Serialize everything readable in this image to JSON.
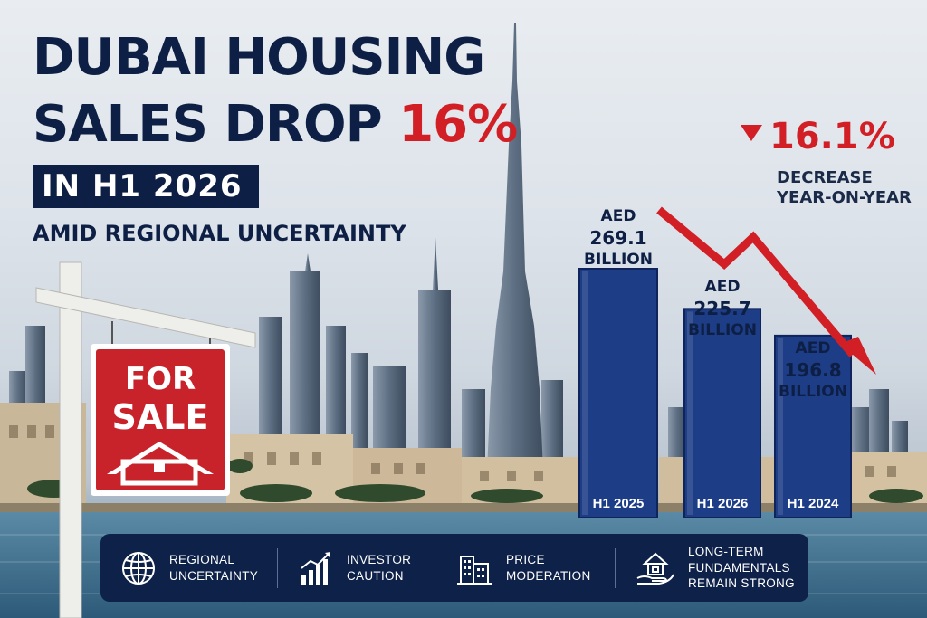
{
  "headline": {
    "line1": "DUBAI HOUSING",
    "line2_prefix": "SALES DROP ",
    "line2_highlight": "16%",
    "line3": "IN H1 2026",
    "subtitle": "AMID REGIONAL UNCERTAINTY"
  },
  "sign": {
    "line1": "FOR",
    "line2": "SALE"
  },
  "change": {
    "value": "16.1%",
    "label1": "DECREASE",
    "label2": "YEAR-ON-YEAR"
  },
  "chart_data": {
    "type": "bar",
    "title": "",
    "categories": [
      "H1 2025",
      "H1 2026",
      "H1 2024"
    ],
    "values": [
      269.1,
      225.7,
      196.8
    ],
    "value_labels": [
      {
        "prefix": "AED",
        "value": "269.1",
        "suffix": "BILLION"
      },
      {
        "prefix": "AED",
        "value": "225.7",
        "suffix": "BILLION"
      },
      {
        "prefix": "AED",
        "value": "196.8",
        "suffix": "BILLION"
      }
    ],
    "unit": "AED billion",
    "trend": "downward",
    "colors": {
      "bar": "#1e3d87",
      "bar_dark": "#0f245a",
      "trend_arrow": "#d21f26"
    }
  },
  "panel": {
    "items": [
      {
        "icon": "globe-icon",
        "line1": "REGIONAL",
        "line2": "UNCERTAINTY"
      },
      {
        "icon": "trend-up-icon",
        "line1": "INVESTOR",
        "line2": "CAUTION"
      },
      {
        "icon": "buildings-icon",
        "line1": "PRICE",
        "line2": "MODERATION"
      },
      {
        "icon": "house-hand-icon",
        "line1": "LONG-TERM",
        "line2": "FUNDAMENTALS",
        "line3": "REMAIN STRONG"
      }
    ]
  },
  "colors": {
    "navy": "#0e1f45",
    "accent_red": "#d21f26",
    "panel_bg": "#0e2149"
  }
}
